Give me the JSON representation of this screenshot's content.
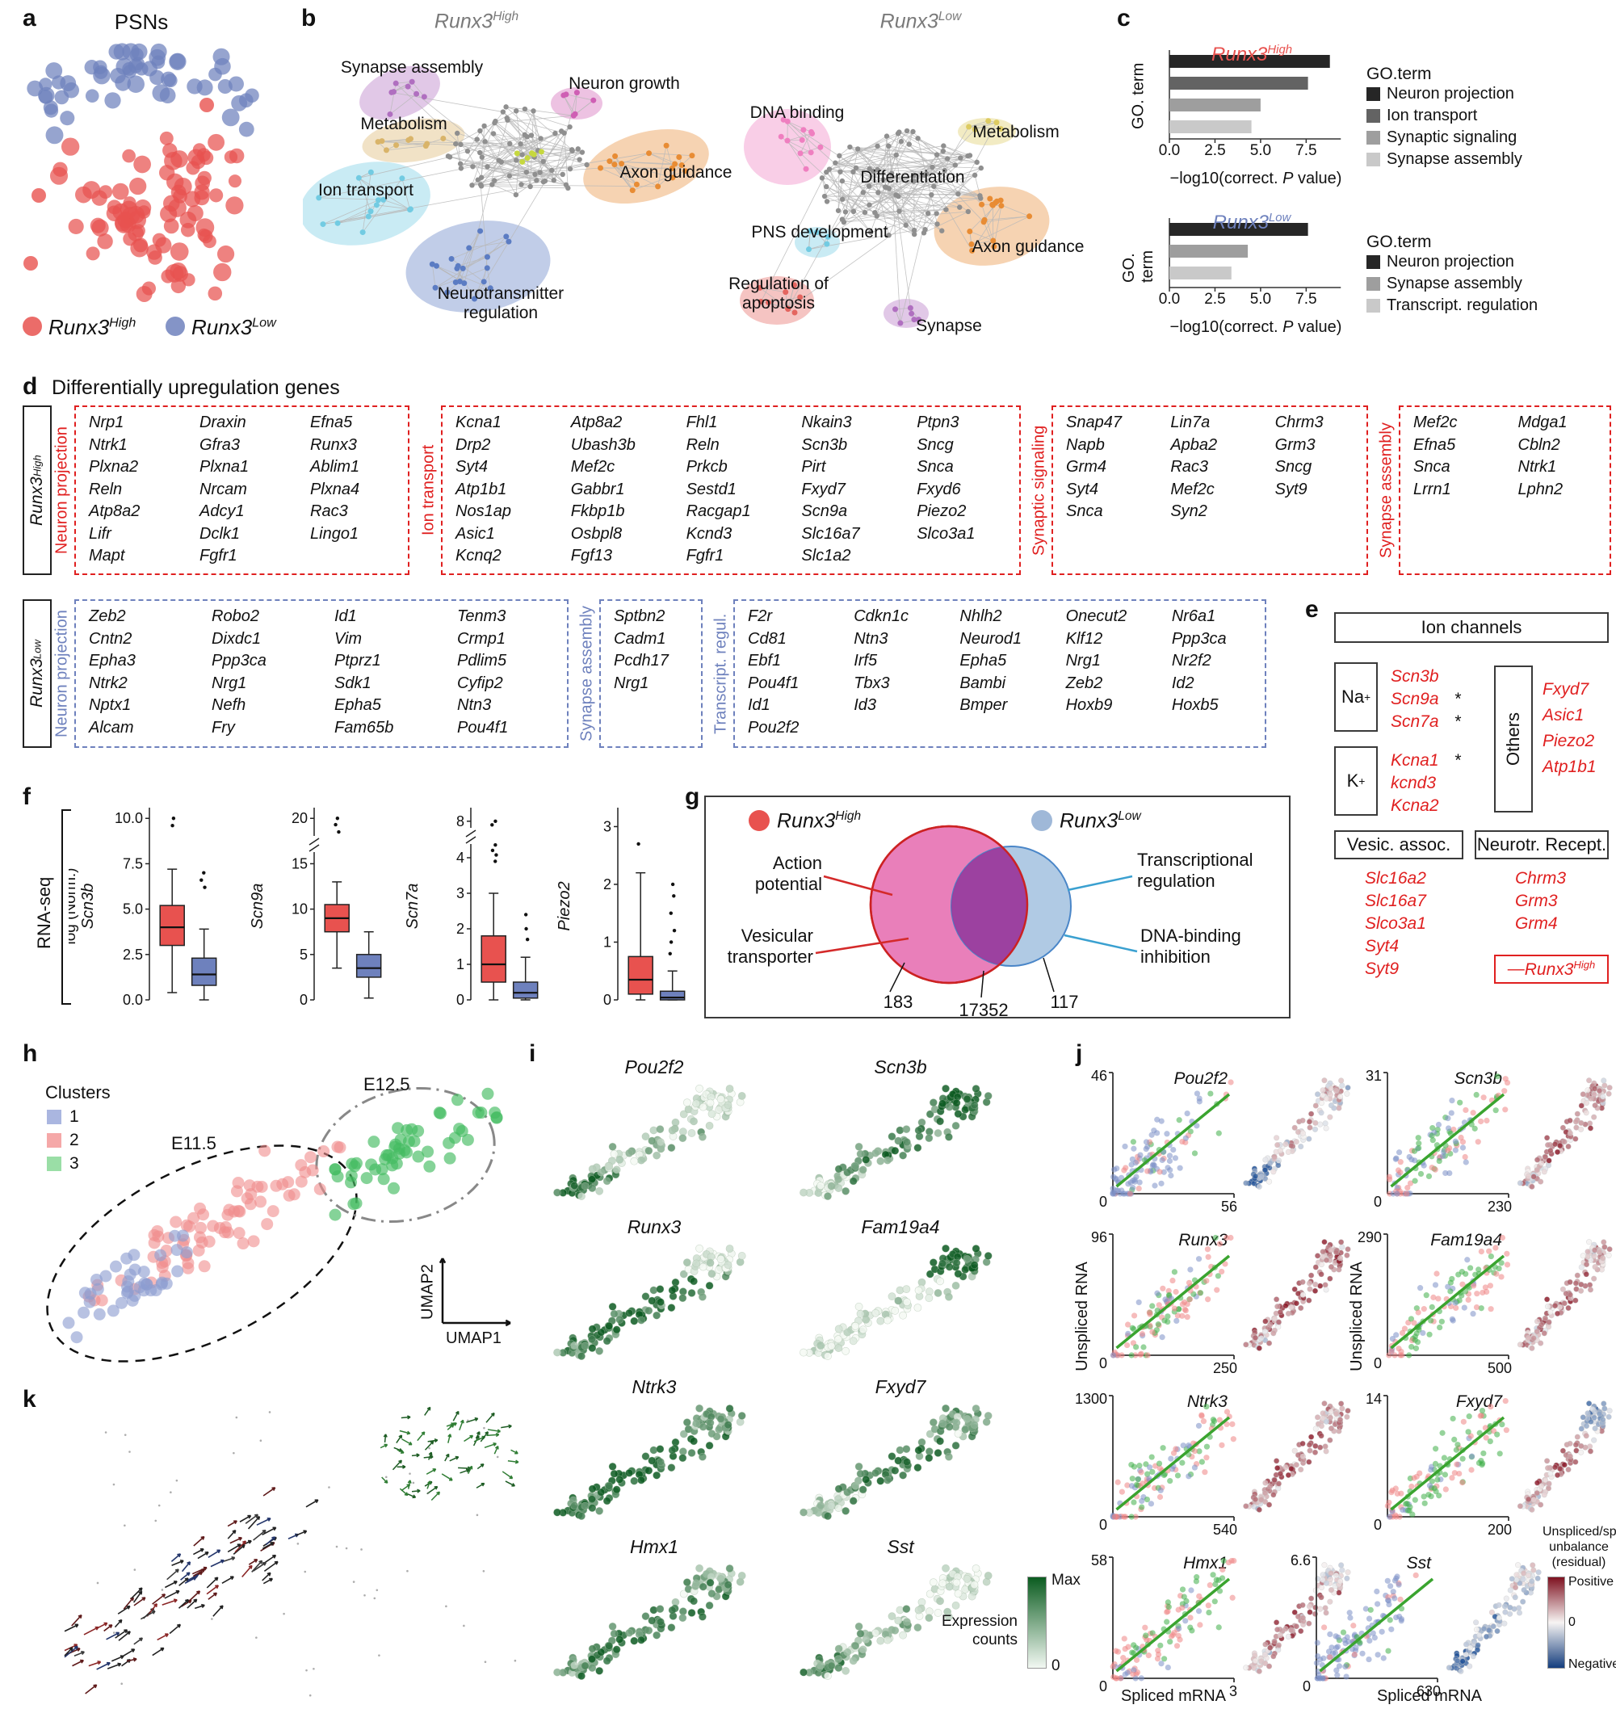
{
  "panel_a": {
    "label": "a",
    "title": "PSNs",
    "legend": [
      {
        "gene": "Runx3",
        "sup": "High",
        "color": "#e8524f"
      },
      {
        "gene": "Runx3",
        "sup": "Low",
        "color": "#6e81bd"
      }
    ],
    "chart_data": {
      "type": "scatter",
      "clusters": [
        {
          "name": "Runx3-Low",
          "color": "#6e81bd",
          "n": 56
        },
        {
          "name": "Runx3-High",
          "color": "#e8524f",
          "n": 88
        }
      ]
    }
  },
  "panel_b": {
    "label": "b",
    "networks": [
      {
        "title": {
          "gene": "Runx3",
          "sup": "High"
        },
        "annotations": [
          "Synapse assembly",
          "Metabolism",
          "Neuron growth",
          "Ion transport",
          "Axon guidance",
          "Neurotransmitter regulation"
        ]
      },
      {
        "title": {
          "gene": "Runx3",
          "sup": "Low"
        },
        "annotations": [
          "DNA binding",
          "Metabolism",
          "Differentiation",
          "PNS development",
          "Axon guidance",
          "Regulation of apoptosis",
          "Synapse"
        ]
      }
    ]
  },
  "panel_c": {
    "label": "c",
    "charts": [
      {
        "title": {
          "gene": "Runx3",
          "sup": "High"
        },
        "title_color": "#e8524f",
        "ylabel": "GO. term",
        "xlabel_pre": "−log10(correct. ",
        "xlabel_it": "P",
        "xlabel_post": " value)",
        "xticks": [
          "0.0",
          "2.5",
          "5.0",
          "7.5"
        ],
        "xtick_vals": [
          0,
          2.5,
          5,
          7.5
        ],
        "legend_title": "GO.term",
        "bars": [
          {
            "term": "Neuron projection",
            "value": 8.8,
            "color": "#262626"
          },
          {
            "term": "Ion transport",
            "value": 7.6,
            "color": "#636363"
          },
          {
            "term": "Synaptic signaling",
            "value": 5.0,
            "color": "#9e9e9e"
          },
          {
            "term": "Synapse assembly",
            "value": 4.5,
            "color": "#c9c9c9"
          }
        ]
      },
      {
        "title": {
          "gene": "Runx3",
          "sup": "Low"
        },
        "title_color": "#6e81bd",
        "ylabel": "GO. term",
        "xlabel_pre": "−log10(correct. ",
        "xlabel_it": "P",
        "xlabel_post": " value)",
        "xticks": [
          "0.0",
          "2.5",
          "5.0",
          "7.5"
        ],
        "xtick_vals": [
          0,
          2.5,
          5,
          7.5
        ],
        "legend_title": "GO.term",
        "bars": [
          {
            "term": "Neuron projection",
            "value": 7.6,
            "color": "#262626"
          },
          {
            "term": "Synapse assembly",
            "value": 4.3,
            "color": "#9e9e9e"
          },
          {
            "term": "Transcript. regulation",
            "value": 3.4,
            "color": "#c9c9c9"
          }
        ]
      }
    ]
  },
  "panel_d": {
    "label": "d",
    "title": "Differentially upregulation genes",
    "rows": [
      {
        "side": {
          "gene": "Runx3",
          "sup": "High"
        },
        "accent": "#e02020",
        "boxes": [
          {
            "category": "Neuron projection",
            "columns": [
              [
                "Nrp1",
                "Ntrk1",
                "Plxna2",
                "Reln",
                "Atp8a2",
                "Lifr",
                "Mapt"
              ],
              [
                "Draxin",
                "Gfra3",
                "Plxna1",
                "Nrcam",
                "Adcy1",
                "Dclk1",
                "Fgfr1"
              ],
              [
                "Efna5",
                "Runx3",
                "Ablim1",
                "Plxna4",
                "Rac3",
                "Lingo1"
              ]
            ]
          },
          {
            "category": "Ion transport",
            "columns": [
              [
                "Kcna1",
                "Drp2",
                "Syt4",
                "Atp1b1",
                "Nos1ap",
                "Asic1",
                "Kcnq2"
              ],
              [
                "Atp8a2",
                "Ubash3b",
                "Mef2c",
                "Gabbr1",
                "Fkbp1b",
                "Osbpl8",
                "Fgf13"
              ],
              [
                "Fhl1",
                "Reln",
                "Prkcb",
                "Sestd1",
                "Racgap1",
                "Kcnd3",
                "Fgfr1"
              ],
              [
                "Nkain3",
                "Scn3b",
                "Pirt",
                "Fxyd7",
                "Scn9a",
                "Slc16a7",
                "Slc1a2"
              ],
              [
                "Ptpn3",
                "Sncg",
                "Snca",
                "Fxyd6",
                "Piezo2",
                "Slco3a1"
              ]
            ]
          },
          {
            "category": "Synaptic signaling",
            "columns": [
              [
                "Snap47",
                "Napb",
                "Grm4",
                "Syt4",
                "Snca"
              ],
              [
                "Lin7a",
                "Apba2",
                "Rac3",
                "Mef2c",
                "Syn2"
              ],
              [
                "Chrm3",
                "Grm3",
                "Sncg",
                "Syt9"
              ]
            ]
          },
          {
            "category": "Synapse assembly",
            "columns": [
              [
                "Mef2c",
                "Efna5",
                "Snca",
                "Lrrn1"
              ],
              [
                "Mdga1",
                "Cbln2",
                "Ntrk1",
                "Lphn2"
              ]
            ]
          }
        ]
      },
      {
        "side": {
          "gene": "Runx3",
          "sup": "Low"
        },
        "accent": "#6e81bd",
        "boxes": [
          {
            "category": "Neuron projection",
            "columns": [
              [
                "Zeb2",
                "Cntn2",
                "Epha3",
                "Ntrk2",
                "Nptx1",
                "Alcam"
              ],
              [
                "Robo2",
                "Dixdc1",
                "Ppp3ca",
                "Nrg1",
                "Nefh",
                "Fry"
              ],
              [
                "Id1",
                "Vim",
                "Ptprz1",
                "Sdk1",
                "Epha5",
                "Fam65b"
              ],
              [
                "Tenm3",
                "Crmp1",
                "Pdlim5",
                "Cyfip2",
                "Ntn3",
                "Pou4f1"
              ]
            ]
          },
          {
            "category": "Synapse assembly",
            "columns": [
              [
                "Sptbn2",
                "Cadm1",
                "Pcdh17",
                "Nrg1"
              ]
            ]
          },
          {
            "category": "Transcript. regul.",
            "columns": [
              [
                "F2r",
                "Cd81",
                "Ebf1",
                "Pou4f1",
                "Id1",
                "Pou2f2"
              ],
              [
                "Cdkn1c",
                "Ntn3",
                "Irf5",
                "Tbx3",
                "Id3"
              ],
              [
                "Nhlh2",
                "Neurod1",
                "Epha5",
                "Bambi",
                "Bmper"
              ],
              [
                "Onecut2",
                "Klf12",
                "Nrg1",
                "Zeb2",
                "Hoxb9"
              ],
              [
                "Nr6a1",
                "Ppp3ca",
                "Nr2f2",
                "Id2",
                "Hoxb5"
              ]
            ]
          }
        ]
      }
    ]
  },
  "panel_e": {
    "label": "e",
    "title": "Ion channels",
    "gene_color": "#e02020",
    "na": {
      "base": "Na",
      "sup": "+",
      "genes": [
        {
          "n": "Scn3b",
          "star": false
        },
        {
          "n": "Scn9a",
          "star": true
        },
        {
          "n": "Scn7a",
          "star": true
        }
      ]
    },
    "k": {
      "base": "K",
      "sup": "+",
      "genes": [
        {
          "n": "Kcna1",
          "star": true
        },
        {
          "n": "kcnd3",
          "star": false
        },
        {
          "n": "Kcna2",
          "star": false
        }
      ]
    },
    "others": {
      "label": "Others",
      "genes": [
        "Fxyd7",
        "Asic1",
        "Piezo2",
        "Atp1b1"
      ]
    },
    "vesic": {
      "title": "Vesic. assoc.",
      "genes": [
        "Slc16a2",
        "Slc16a7",
        "Slco3a1",
        "Syt4",
        "Syt9"
      ]
    },
    "neurotr": {
      "title": "Neurotr. Recept.",
      "genes": [
        "Chrm3",
        "Grm3",
        "Grm4"
      ]
    },
    "legend": {
      "dash": "—",
      "gene": "Runx3",
      "sup": "High"
    }
  },
  "panel_f": {
    "label": "f",
    "side_label": "RNA-seq",
    "colors": {
      "high": "#e8524f",
      "low": "#6e81bd"
    },
    "plots": [
      {
        "gene": "Scn3b",
        "axis_label": "log (Norm.)",
        "vmax": 10.5,
        "ticks": [
          {
            "v": 0,
            "t": "0.0"
          },
          {
            "v": 2.5,
            "t": "2.5"
          },
          {
            "v": 5,
            "t": "5.0"
          },
          {
            "v": 7.5,
            "t": "7.5"
          },
          {
            "v": 10,
            "t": "10.0"
          }
        ],
        "red": {
          "q1": 3.0,
          "med": 4.0,
          "q3": 5.2,
          "lo": 0.4,
          "hi": 7.2,
          "outliers": [
            9.6,
            10.0
          ]
        },
        "blue": {
          "q1": 0.8,
          "med": 1.4,
          "q3": 2.3,
          "lo": 0.0,
          "hi": 3.9,
          "outliers": [
            6.2,
            6.6,
            7.0
          ]
        }
      },
      {
        "gene": "Scn9a",
        "vmax": 21,
        "squiggle": 52,
        "ticks": [
          {
            "v": 0,
            "t": "0"
          },
          {
            "v": 5,
            "t": "5"
          },
          {
            "v": 10,
            "t": "10"
          },
          {
            "v": 15,
            "t": "15"
          },
          {
            "v": 20,
            "t": "20"
          }
        ],
        "red": {
          "q1": 7.5,
          "med": 9.0,
          "q3": 10.5,
          "lo": 3.5,
          "hi": 13.0,
          "outliers": [
            18.5,
            19.3,
            20.0
          ]
        },
        "blue": {
          "q1": 2.5,
          "med": 3.5,
          "q3": 5.0,
          "lo": 0.2,
          "hi": 7.5,
          "outliers": []
        }
      },
      {
        "gene": "Scn7a",
        "brk": {
          "lin": 4,
          "max": 8.6
        },
        "squiggle": 42,
        "ticks": [
          {
            "v": 0,
            "t": "0"
          },
          {
            "v": 1,
            "t": "1"
          },
          {
            "v": 2,
            "t": "2"
          },
          {
            "v": 3,
            "t": "3"
          },
          {
            "v": 4,
            "t": "4"
          },
          {
            "v": 8,
            "t": "8"
          }
        ],
        "red": {
          "q1": 0.5,
          "med": 1.0,
          "q3": 1.8,
          "lo": 0.0,
          "hi": 3.0,
          "outliers": [
            3.9,
            4.3,
            4.8,
            5.4,
            7.6,
            8.0
          ]
        },
        "blue": {
          "q1": 0.05,
          "med": 0.2,
          "q3": 0.5,
          "lo": 0.0,
          "hi": 1.2,
          "outliers": [
            1.7,
            2.0,
            2.4
          ]
        }
      },
      {
        "gene": "Piezo2",
        "vmax": 3.3,
        "ticks": [
          {
            "v": 0,
            "t": "0"
          },
          {
            "v": 1,
            "t": "1"
          },
          {
            "v": 2,
            "t": "2"
          },
          {
            "v": 3,
            "t": "3"
          }
        ],
        "red": {
          "q1": 0.1,
          "med": 0.35,
          "q3": 0.75,
          "lo": 0.0,
          "hi": 2.2,
          "outliers": [
            2.7
          ]
        },
        "blue": {
          "q1": 0.0,
          "med": 0.04,
          "q3": 0.15,
          "lo": 0.0,
          "hi": 0.5,
          "outliers": [
            0.8,
            1.0,
            1.2,
            1.5,
            1.8,
            2.0
          ]
        }
      }
    ]
  },
  "panel_g": {
    "label": "g",
    "legend": [
      {
        "gene": "Runx3",
        "sup": "High",
        "color": "#e8524f"
      },
      {
        "gene": "Runx3",
        "sup": "Low",
        "color": "#9fb8d8"
      }
    ],
    "venn": {
      "left_only": "183",
      "intersection": "17352",
      "right_only": "117",
      "left_fill": "#e569ae",
      "left_stroke": "#cc2222",
      "right_fill": "#a9c5e2",
      "right_stroke": "#4a86c8",
      "overlap": "#9b3a9c"
    },
    "callouts": [
      {
        "text": "Action potential",
        "color": "#d42a2a"
      },
      {
        "text": "Vesicular transporter",
        "color": "#d42a2a"
      },
      {
        "text": "Transcriptional regulation",
        "color": "#3aa0d0"
      },
      {
        "text": "DNA-binding inhibition",
        "color": "#3aa0d0"
      }
    ]
  },
  "panel_h": {
    "label": "h",
    "legend_title": "Clusters",
    "clusters": [
      {
        "id": "1",
        "swatch": "#aab6e0",
        "point": "#8d9cd1"
      },
      {
        "id": "2",
        "swatch": "#f5a8a8",
        "point": "#f08c8c"
      },
      {
        "id": "3",
        "swatch": "#9adea6",
        "point": "#43bb61"
      }
    ],
    "annotations": {
      "e115": "E11.5",
      "e125": "E12.5"
    },
    "axes": {
      "x": "UMAP1",
      "y": "UMAP2"
    }
  },
  "panel_i": {
    "label": "i",
    "genes": [
      {
        "name": "Pou2f2",
        "w": [
          0.9,
          0.3,
          0.08
        ]
      },
      {
        "name": "Scn3b",
        "w": [
          0.15,
          0.7,
          0.95
        ]
      },
      {
        "name": "Runx3",
        "w": [
          0.7,
          0.9,
          0.1
        ]
      },
      {
        "name": "Fam19a4",
        "w": [
          0.05,
          0.1,
          0.9
        ]
      },
      {
        "name": "Ntrk3",
        "w": [
          0.8,
          0.9,
          0.6
        ]
      },
      {
        "name": "Fxyd7",
        "w": [
          0.2,
          0.75,
          0.5
        ]
      },
      {
        "name": "Hmx1",
        "w": [
          0.55,
          0.8,
          0.45
        ]
      },
      {
        "name": "Sst",
        "w": [
          0.7,
          0.25,
          0.05
        ]
      }
    ],
    "legend": {
      "label": "Expression counts",
      "max": "Max",
      "min": "0"
    }
  },
  "panel_j": {
    "label": "j",
    "ylabel": "Unspliced RNA",
    "xlabel": "Spliced mRNA",
    "zero": "0",
    "plots": [
      {
        "gene": "Pou2f2",
        "ymax": "46",
        "xmax": "56",
        "mix": [
          0.72,
          0.18,
          0.1
        ],
        "residual": [
          -0.7,
          0.15,
          0.1
        ]
      },
      {
        "gene": "Scn3b",
        "ymax": "31",
        "xmax": "230",
        "mix": [
          0.3,
          0.45,
          0.25
        ],
        "residual": [
          0.1,
          0.55,
          0.45
        ]
      },
      {
        "gene": "Runx3",
        "ymax": "96",
        "xmax": "250",
        "mix": [
          0.2,
          0.55,
          0.25
        ],
        "residual": [
          0.25,
          0.6,
          0.45
        ]
      },
      {
        "gene": "Fam19a4",
        "ymax": "290",
        "xmax": "500",
        "mix": [
          0.15,
          0.45,
          0.4
        ],
        "residual": [
          0.35,
          0.5,
          0.2
        ]
      },
      {
        "gene": "Ntrk3",
        "ymax": "1300",
        "xmax": "540",
        "mix": [
          0.25,
          0.45,
          0.3
        ],
        "residual": [
          0.3,
          0.65,
          0.3
        ]
      },
      {
        "gene": "Fxyd7",
        "ymax": "14",
        "xmax": "200",
        "mix": [
          0.1,
          0.35,
          0.55
        ],
        "residual": [
          0.2,
          0.5,
          -0.45
        ]
      },
      {
        "gene": "Hmx1",
        "ymax": "58",
        "xmax": "3",
        "mix": [
          0.15,
          0.5,
          0.35
        ],
        "residual": [
          0.1,
          0.5,
          0.15
        ]
      },
      {
        "gene": "Sst",
        "ymax": "6.6",
        "xmax": "630",
        "mix": [
          0.7,
          0.2,
          0.1
        ],
        "residual": [
          -0.65,
          -0.25,
          0.05
        ]
      }
    ],
    "legend": {
      "title_lines": [
        "Unspliced/spliced",
        "unbalance",
        "(residual)"
      ],
      "top": "Positive",
      "mid": "0",
      "bottom": "Negative"
    }
  },
  "panel_k": {
    "label": "k"
  }
}
